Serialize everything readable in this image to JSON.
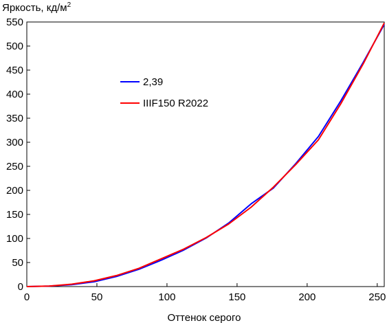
{
  "chart_data": {
    "type": "line",
    "ylabel": "Яркость, кд/м",
    "ylabel_sup": "2",
    "xlabel": "Оттенок серого",
    "xlim": [
      0,
      255
    ],
    "ylim": [
      0,
      550
    ],
    "x_ticks": [
      0,
      50,
      100,
      150,
      200,
      250
    ],
    "y_ticks": [
      0,
      50,
      100,
      150,
      200,
      250,
      300,
      350,
      400,
      450,
      500,
      550
    ],
    "grid": false,
    "legend_position": "upper-left-center",
    "series": [
      {
        "name": "2,39",
        "color": "#0000ff",
        "x": [
          0,
          16,
          32,
          48,
          64,
          80,
          96,
          112,
          128,
          144,
          160,
          176,
          192,
          208,
          224,
          240,
          255
        ],
        "y": [
          0,
          1,
          4,
          10,
          21,
          36,
          55,
          76,
          101,
          132,
          172,
          205,
          256,
          312,
          386,
          466,
          545
        ]
      },
      {
        "name": "IIIF150 R2022",
        "color": "#ff0000",
        "x": [
          0,
          16,
          32,
          48,
          64,
          80,
          96,
          112,
          128,
          144,
          160,
          176,
          192,
          208,
          224,
          240,
          255
        ],
        "y": [
          0,
          1,
          5,
          12,
          23,
          38,
          58,
          78,
          102,
          130,
          165,
          207,
          254,
          305,
          380,
          463,
          548
        ]
      }
    ]
  }
}
